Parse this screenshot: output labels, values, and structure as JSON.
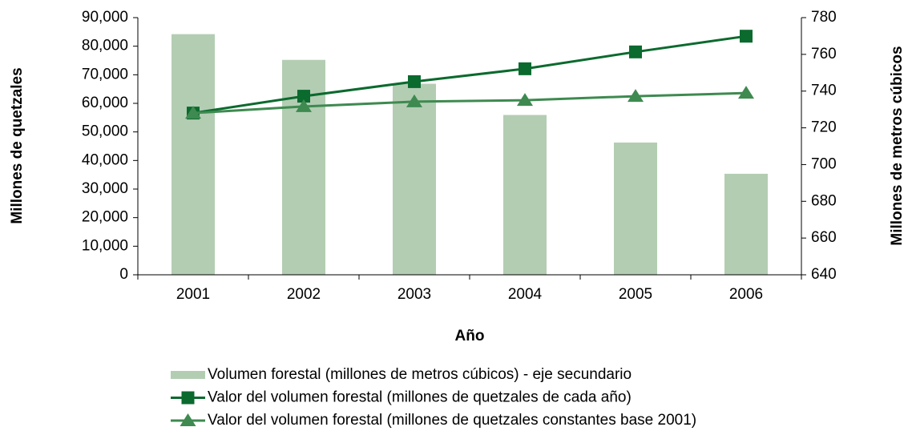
{
  "chart_data": {
    "type": "bar-line",
    "xlabel": "Año",
    "ylabel": "Millones de quetzales",
    "y2label": "Millones de metros cúbicos",
    "categories": [
      "2001",
      "2002",
      "2003",
      "2004",
      "2005",
      "2006"
    ],
    "series": [
      {
        "name": "Volumen forestal (millones de metros cúbicos) - eje secundario",
        "type": "bar",
        "axis": "y2",
        "color": "#b3cdb3",
        "values": [
          771,
          757,
          744,
          727,
          712,
          695
        ]
      },
      {
        "name": "Valor del volumen forestal (millones de quetzales de cada año)",
        "type": "line",
        "marker": "square",
        "color": "#0b6a2e",
        "values": [
          56600,
          62500,
          67600,
          72100,
          78000,
          83500
        ]
      },
      {
        "name": "Valor del volumen forestal (millones de quetzales constantes base 2001)",
        "type": "line",
        "marker": "triangle",
        "color": "#3e8a50",
        "values": [
          56600,
          58900,
          60600,
          61100,
          62500,
          63600
        ]
      }
    ],
    "ylim": [
      0,
      90000
    ],
    "yticks": [
      0,
      {
        "value": 10000,
        "label": "10,000"
      },
      {
        "value": 20000,
        "label": "20,000"
      },
      {
        "value": 30000,
        "label": "30,000"
      },
      {
        "value": 40000,
        "label": "40,000"
      },
      {
        "value": 50000,
        "label": "50,000"
      },
      {
        "value": 60000,
        "label": "60,000"
      },
      {
        "value": 70000,
        "label": "70,000"
      },
      {
        "value": 80000,
        "label": "80,000"
      },
      {
        "value": 90000,
        "label": "90,000"
      }
    ],
    "y2lim": [
      640,
      780
    ],
    "y2ticks": [
      640,
      660,
      680,
      700,
      720,
      740,
      760,
      780
    ],
    "legend": "bottom"
  }
}
